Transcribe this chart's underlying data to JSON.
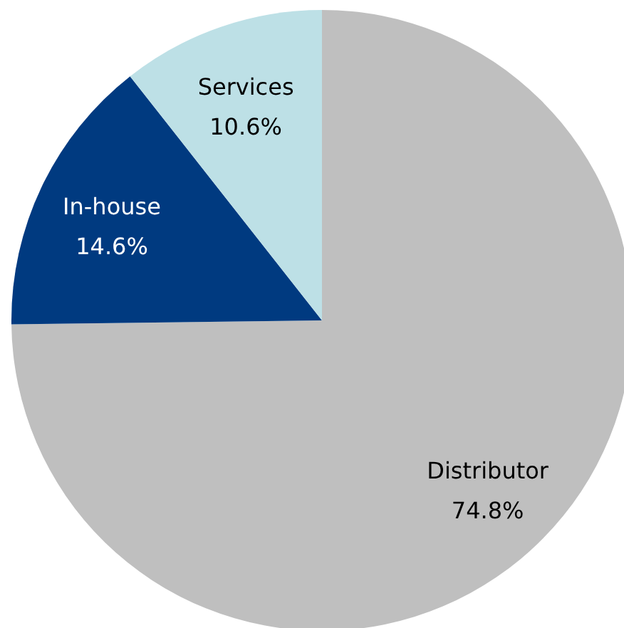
{
  "chart_data": {
    "type": "pie",
    "categories": [
      "Distributor",
      "In-house",
      "Services"
    ],
    "values": [
      74.8,
      14.6,
      10.6
    ],
    "colors": [
      "#bfbfbf",
      "#003a80",
      "#bde0e6"
    ],
    "value_labels": [
      "74.8%",
      "14.6%",
      "10.6%"
    ]
  }
}
